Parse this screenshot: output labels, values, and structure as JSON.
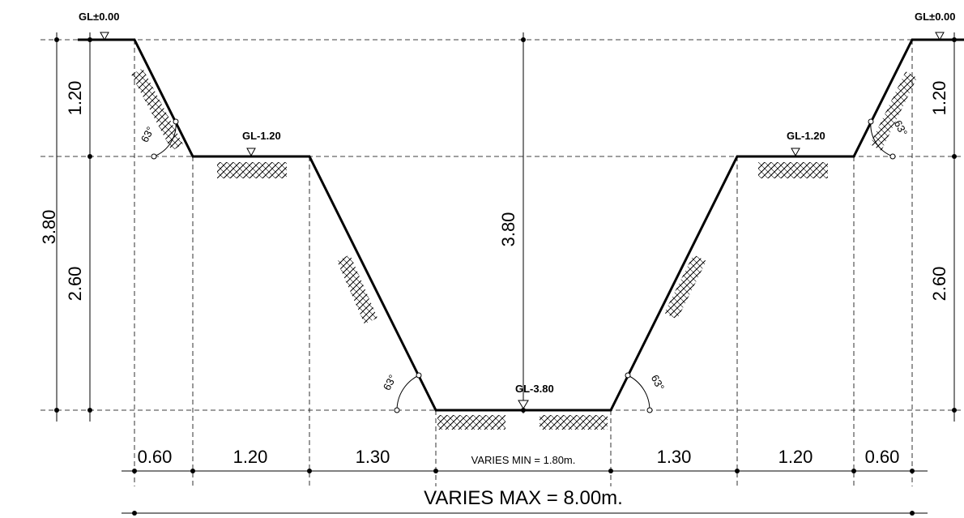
{
  "levels": {
    "gl_top_left": "GL±0.00",
    "gl_top_right": "GL±0.00",
    "gl_mid_left": "GL-1.20",
    "gl_mid_right": "GL-1.20",
    "gl_bottom": "GL-3.80"
  },
  "vertical_dims": {
    "left_upper": "1.20",
    "left_total": "3.80",
    "left_lower": "2.60",
    "center": "3.80",
    "right_upper": "1.20",
    "right_lower": "2.60"
  },
  "angles": {
    "upper_left": "63°",
    "upper_right": "63°",
    "lower_left": "63°",
    "lower_right": "63°"
  },
  "horizontal_dims": {
    "seg1": "0.60",
    "seg2": "1.20",
    "seg3": "1.30",
    "center": "VARIES MIN = 1.80m.",
    "seg5": "1.30",
    "seg6": "1.20",
    "seg7": "0.60",
    "overall": "VARIES MAX = 8.00m."
  }
}
